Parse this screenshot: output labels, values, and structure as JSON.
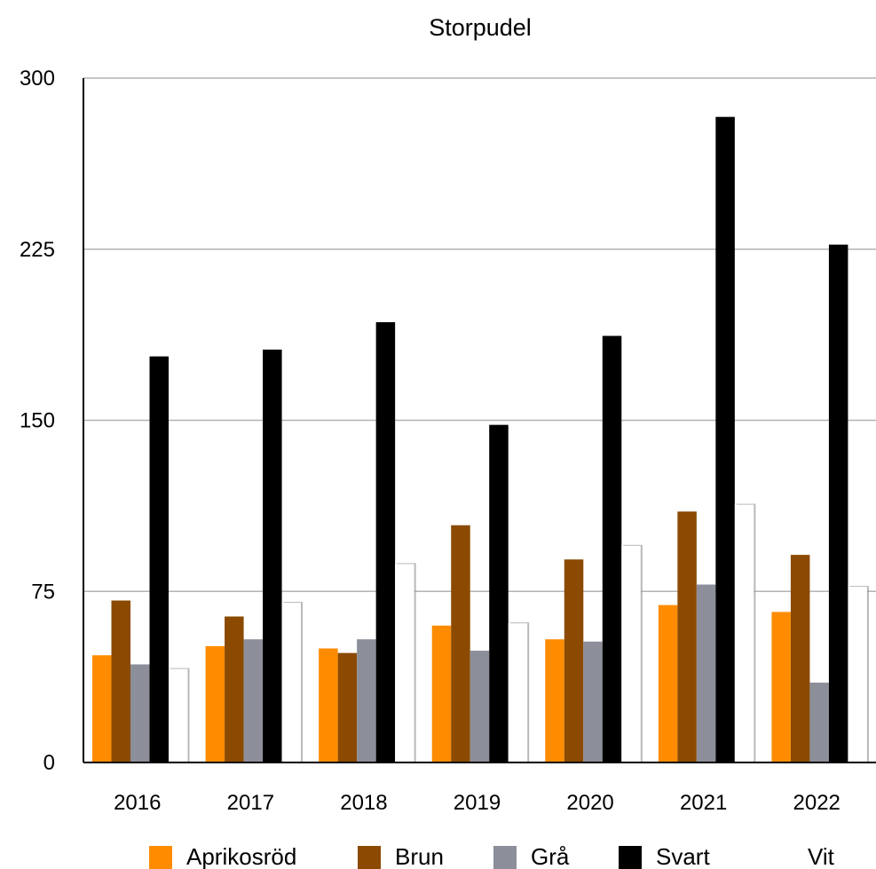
{
  "chart_data": {
    "type": "bar",
    "title": "Storpudel",
    "xlabel": "",
    "ylabel": "",
    "categories": [
      "2016",
      "2017",
      "2018",
      "2019",
      "2020",
      "2021",
      "2022"
    ],
    "ylim": [
      0,
      300
    ],
    "yticks": [
      0,
      75,
      150,
      225,
      300
    ],
    "grid": true,
    "legend": "bottom",
    "series": [
      {
        "name": "Aprikosröd",
        "color": "#ff8c00",
        "values": [
          47,
          51,
          50,
          60,
          54,
          69,
          66
        ]
      },
      {
        "name": "Brun",
        "color": "#8b4a00",
        "values": [
          71,
          64,
          48,
          104,
          89,
          110,
          91
        ]
      },
      {
        "name": "Grå",
        "color": "#8c8f99",
        "values": [
          43,
          54,
          54,
          49,
          53,
          78,
          35
        ]
      },
      {
        "name": "Svart",
        "color": "#000000",
        "values": [
          178,
          181,
          193,
          148,
          187,
          283,
          227
        ]
      },
      {
        "name": "Vit",
        "color": "#ffffff",
        "values": [
          41,
          70,
          87,
          61,
          95,
          113,
          77
        ]
      }
    ]
  }
}
